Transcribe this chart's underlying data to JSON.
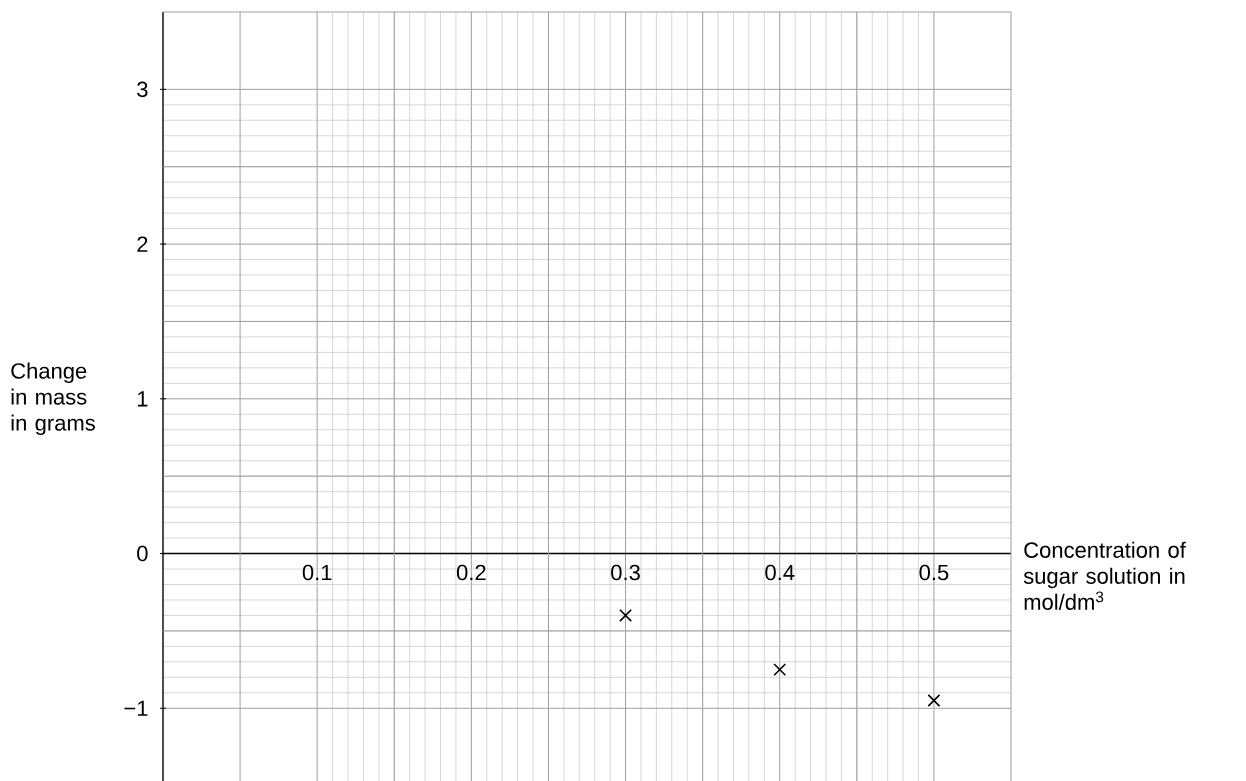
{
  "chart_data": {
    "type": "scatter",
    "xlabel": "Concentration of sugar solution in mol/dm$^{3}$",
    "ylabel": "Change in mass in grams",
    "x": [
      0.3,
      0.4,
      0.5
    ],
    "values": [
      -0.4,
      -0.75,
      -0.95
    ],
    "color": "#000000",
    "marker": "cross",
    "xlim": [
      0,
      0.55
    ],
    "ylim": [
      -1.47,
      3.5
    ],
    "xticks": [
      0.1,
      0.2,
      0.3,
      0.4,
      0.5
    ],
    "yticks": [
      {
        "value": -1,
        "label": "−1"
      },
      0,
      1,
      2,
      3
    ],
    "grid": true
  }
}
